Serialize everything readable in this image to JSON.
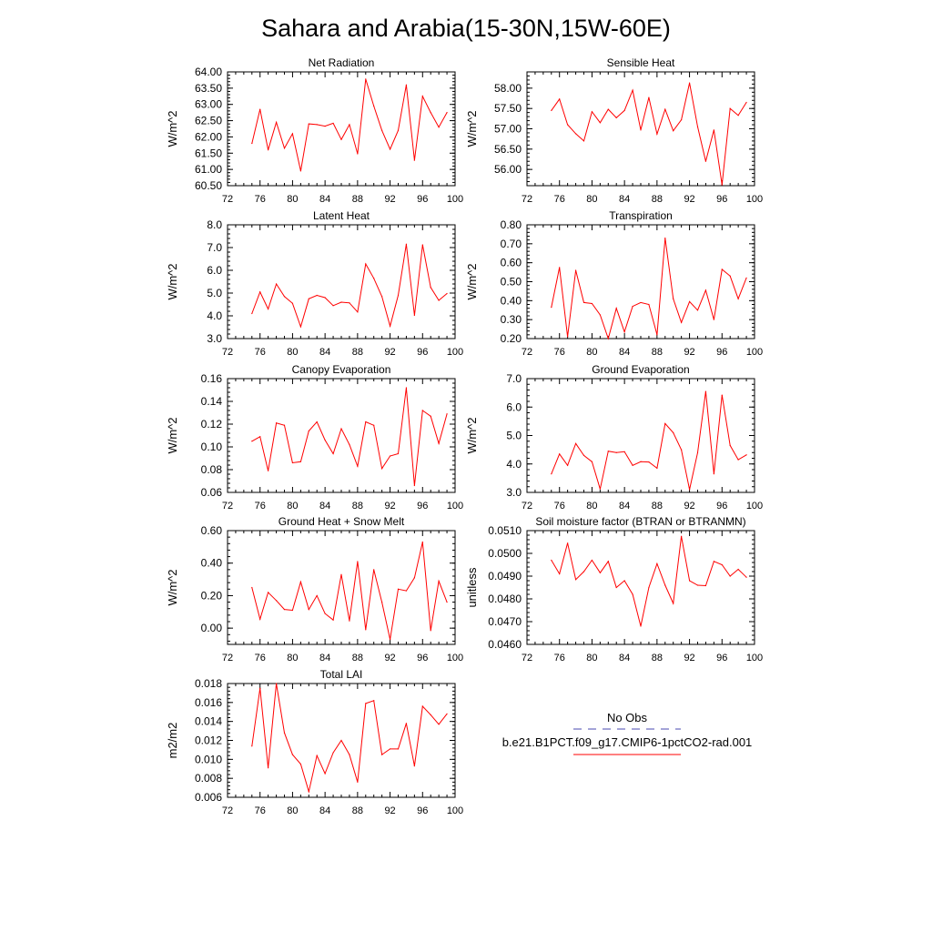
{
  "figure_title": "Sahara and Arabia(15-30N,15W-60E)",
  "legend": {
    "entries": [
      {
        "label": "No Obs",
        "color": "#4a4ab0",
        "dash": true
      },
      {
        "label": "b.e21.B1PCT.f09_g17.CMIP6-1pctCO2-rad.001",
        "color": "#ff0000",
        "dash": false
      }
    ]
  },
  "chart_data": [
    {
      "type": "line",
      "title": "Net Radiation",
      "ylabel": "W/m^2",
      "xlim": [
        72,
        100
      ],
      "xticks": [
        72,
        76,
        80,
        84,
        88,
        92,
        96,
        100
      ],
      "ylim": [
        60.5,
        64.0
      ],
      "yticks": [
        "60.50",
        "61.00",
        "61.50",
        "62.00",
        "62.50",
        "63.00",
        "63.50",
        "64.00"
      ],
      "series": [
        {
          "color": "#ff0000",
          "x": [
            75,
            76,
            77,
            78,
            79,
            80,
            81,
            82,
            83,
            84,
            85,
            86,
            87,
            88,
            89,
            90,
            91,
            92,
            93,
            94,
            95,
            96,
            97,
            98,
            99
          ],
          "y": [
            61.8,
            62.85,
            61.6,
            62.45,
            61.65,
            62.1,
            60.95,
            62.4,
            62.38,
            62.33,
            62.42,
            61.92,
            62.38,
            61.48,
            63.78,
            62.95,
            62.2,
            61.62,
            62.2,
            63.6,
            61.28,
            63.25,
            62.75,
            62.3,
            62.75
          ]
        }
      ]
    },
    {
      "type": "line",
      "title": "Sensible Heat",
      "ylabel": "W/m^2",
      "xlim": [
        72,
        100
      ],
      "xticks": [
        72,
        76,
        80,
        84,
        88,
        92,
        96,
        100
      ],
      "ylim": [
        55.6,
        58.4
      ],
      "yticks": [
        "56.00",
        "56.50",
        "57.00",
        "57.50",
        "58.00"
      ],
      "series": [
        {
          "color": "#ff0000",
          "x": [
            75,
            76,
            77,
            78,
            79,
            80,
            81,
            82,
            83,
            84,
            85,
            86,
            87,
            88,
            89,
            90,
            91,
            92,
            93,
            94,
            95,
            96,
            97,
            98,
            99
          ],
          "y": [
            57.45,
            57.73,
            57.1,
            56.88,
            56.7,
            57.42,
            57.15,
            57.48,
            57.27,
            57.45,
            57.95,
            56.97,
            57.77,
            56.87,
            57.48,
            56.95,
            57.22,
            58.13,
            57.05,
            56.2,
            56.97,
            55.62,
            57.5,
            57.33,
            57.65
          ]
        }
      ]
    },
    {
      "type": "line",
      "title": "Latent Heat",
      "ylabel": "W/m^2",
      "xlim": [
        72,
        100
      ],
      "xticks": [
        72,
        76,
        80,
        84,
        88,
        92,
        96,
        100
      ],
      "ylim": [
        3.0,
        8.0
      ],
      "yticks": [
        "3.0",
        "4.0",
        "5.0",
        "6.0",
        "7.0",
        "8.0"
      ],
      "series": [
        {
          "color": "#ff0000",
          "x": [
            75,
            76,
            77,
            78,
            79,
            80,
            81,
            82,
            83,
            84,
            85,
            86,
            87,
            88,
            89,
            90,
            91,
            92,
            93,
            94,
            95,
            96,
            97,
            98,
            99
          ],
          "y": [
            4.1,
            5.05,
            4.3,
            5.4,
            4.85,
            4.55,
            3.52,
            4.75,
            4.9,
            4.8,
            4.45,
            4.6,
            4.57,
            4.17,
            6.28,
            5.65,
            4.85,
            3.55,
            4.9,
            7.15,
            4.02,
            7.12,
            5.25,
            4.68,
            4.98
          ]
        }
      ]
    },
    {
      "type": "line",
      "title": "Transpiration",
      "ylabel": "W/m^2",
      "xlim": [
        72,
        100
      ],
      "xticks": [
        72,
        76,
        80,
        84,
        88,
        92,
        96,
        100
      ],
      "ylim": [
        0.2,
        0.8
      ],
      "yticks": [
        "0.20",
        "0.30",
        "0.40",
        "0.50",
        "0.60",
        "0.70",
        "0.80"
      ],
      "series": [
        {
          "color": "#ff0000",
          "x": [
            75,
            76,
            77,
            78,
            79,
            80,
            81,
            82,
            83,
            84,
            85,
            86,
            87,
            88,
            89,
            90,
            91,
            92,
            93,
            94,
            95,
            96,
            97,
            98,
            99
          ],
          "y": [
            0.365,
            0.575,
            0.21,
            0.56,
            0.39,
            0.385,
            0.325,
            0.2,
            0.36,
            0.235,
            0.37,
            0.39,
            0.38,
            0.22,
            0.73,
            0.41,
            0.285,
            0.395,
            0.35,
            0.455,
            0.3,
            0.565,
            0.53,
            0.41,
            0.52
          ]
        }
      ]
    },
    {
      "type": "line",
      "title": "Canopy Evaporation",
      "ylabel": "W/m^2",
      "xlim": [
        72,
        100
      ],
      "xticks": [
        72,
        76,
        80,
        84,
        88,
        92,
        96,
        100
      ],
      "ylim": [
        0.06,
        0.16
      ],
      "yticks": [
        "0.06",
        "0.08",
        "0.10",
        "0.12",
        "0.14",
        "0.16"
      ],
      "series": [
        {
          "color": "#ff0000",
          "x": [
            75,
            76,
            77,
            78,
            79,
            80,
            81,
            82,
            83,
            84,
            85,
            86,
            87,
            88,
            89,
            90,
            91,
            92,
            93,
            94,
            95,
            96,
            97,
            98,
            99
          ],
          "y": [
            0.105,
            0.109,
            0.079,
            0.121,
            0.119,
            0.086,
            0.087,
            0.114,
            0.122,
            0.106,
            0.094,
            0.116,
            0.102,
            0.083,
            0.122,
            0.119,
            0.081,
            0.092,
            0.094,
            0.152,
            0.066,
            0.132,
            0.127,
            0.103,
            0.129
          ]
        }
      ]
    },
    {
      "type": "line",
      "title": "Ground Evaporation",
      "ylabel": "W/m^2",
      "xlim": [
        72,
        100
      ],
      "xticks": [
        72,
        76,
        80,
        84,
        88,
        92,
        96,
        100
      ],
      "ylim": [
        3.0,
        7.0
      ],
      "yticks": [
        "3.0",
        "4.0",
        "5.0",
        "6.0",
        "7.0"
      ],
      "series": [
        {
          "color": "#ff0000",
          "x": [
            75,
            76,
            77,
            78,
            79,
            80,
            81,
            82,
            83,
            84,
            85,
            86,
            87,
            88,
            89,
            90,
            91,
            92,
            93,
            94,
            95,
            96,
            97,
            98,
            99
          ],
          "y": [
            3.65,
            4.35,
            3.95,
            4.72,
            4.3,
            4.08,
            3.12,
            4.45,
            4.4,
            4.43,
            3.95,
            4.08,
            4.07,
            3.85,
            5.42,
            5.1,
            4.5,
            3.1,
            4.4,
            6.55,
            3.65,
            6.42,
            4.65,
            4.15,
            4.32
          ]
        }
      ]
    },
    {
      "type": "line",
      "title": "Ground Heat + Snow Melt",
      "ylabel": "W/m^2",
      "xlim": [
        72,
        100
      ],
      "xticks": [
        72,
        76,
        80,
        84,
        88,
        92,
        96,
        100
      ],
      "ylim": [
        -0.1,
        0.6
      ],
      "yticks": [
        "0.00",
        "0.20",
        "0.40",
        "0.60"
      ],
      "series": [
        {
          "color": "#ff0000",
          "x": [
            75,
            76,
            77,
            78,
            79,
            80,
            81,
            82,
            83,
            84,
            85,
            86,
            87,
            88,
            89,
            90,
            91,
            92,
            93,
            94,
            95,
            96,
            97,
            98,
            99
          ],
          "y": [
            0.25,
            0.055,
            0.22,
            0.17,
            0.115,
            0.11,
            0.285,
            0.115,
            0.2,
            0.09,
            0.05,
            0.33,
            0.045,
            0.41,
            -0.01,
            0.36,
            0.16,
            -0.07,
            0.24,
            0.23,
            0.31,
            0.53,
            -0.015,
            0.29,
            0.16
          ]
        }
      ]
    },
    {
      "type": "line",
      "title": "Soil moisture factor (BTRAN or BTRANMN)",
      "ylabel": "unitless",
      "xlim": [
        72,
        100
      ],
      "xticks": [
        72,
        76,
        80,
        84,
        88,
        92,
        96,
        100
      ],
      "ylim": [
        0.046,
        0.051
      ],
      "yticks": [
        "0.0460",
        "0.0470",
        "0.0480",
        "0.0490",
        "0.0500",
        "0.0510"
      ],
      "series": [
        {
          "color": "#ff0000",
          "x": [
            75,
            76,
            77,
            78,
            79,
            80,
            81,
            82,
            83,
            84,
            85,
            86,
            87,
            88,
            89,
            90,
            91,
            92,
            93,
            94,
            95,
            96,
            97,
            98,
            99
          ],
          "y": [
            0.0497,
            0.0491,
            0.05045,
            0.04885,
            0.0492,
            0.0497,
            0.04915,
            0.04965,
            0.0485,
            0.0488,
            0.0482,
            0.0468,
            0.0485,
            0.04955,
            0.0486,
            0.0478,
            0.05075,
            0.0488,
            0.0486,
            0.04858,
            0.04965,
            0.0495,
            0.049,
            0.0493,
            0.04895
          ]
        }
      ]
    },
    {
      "type": "line",
      "title": "Total LAI",
      "ylabel": "m2/m2",
      "xlim": [
        72,
        100
      ],
      "xticks": [
        72,
        76,
        80,
        84,
        88,
        92,
        96,
        100
      ],
      "ylim": [
        0.006,
        0.018
      ],
      "yticks": [
        "0.006",
        "0.008",
        "0.010",
        "0.012",
        "0.014",
        "0.016",
        "0.018"
      ],
      "series": [
        {
          "color": "#ff0000",
          "x": [
            75,
            76,
            77,
            78,
            79,
            80,
            81,
            82,
            83,
            84,
            85,
            86,
            87,
            88,
            89,
            90,
            91,
            92,
            93,
            94,
            95,
            96,
            97,
            98,
            99
          ],
          "y": [
            0.0114,
            0.0175,
            0.0091,
            0.018,
            0.0128,
            0.0105,
            0.0095,
            0.0066,
            0.0104,
            0.0085,
            0.0107,
            0.012,
            0.0105,
            0.0076,
            0.0159,
            0.0162,
            0.0105,
            0.0111,
            0.0111,
            0.0138,
            0.0093,
            0.0156,
            0.0147,
            0.0137,
            0.0148
          ]
        }
      ]
    }
  ]
}
